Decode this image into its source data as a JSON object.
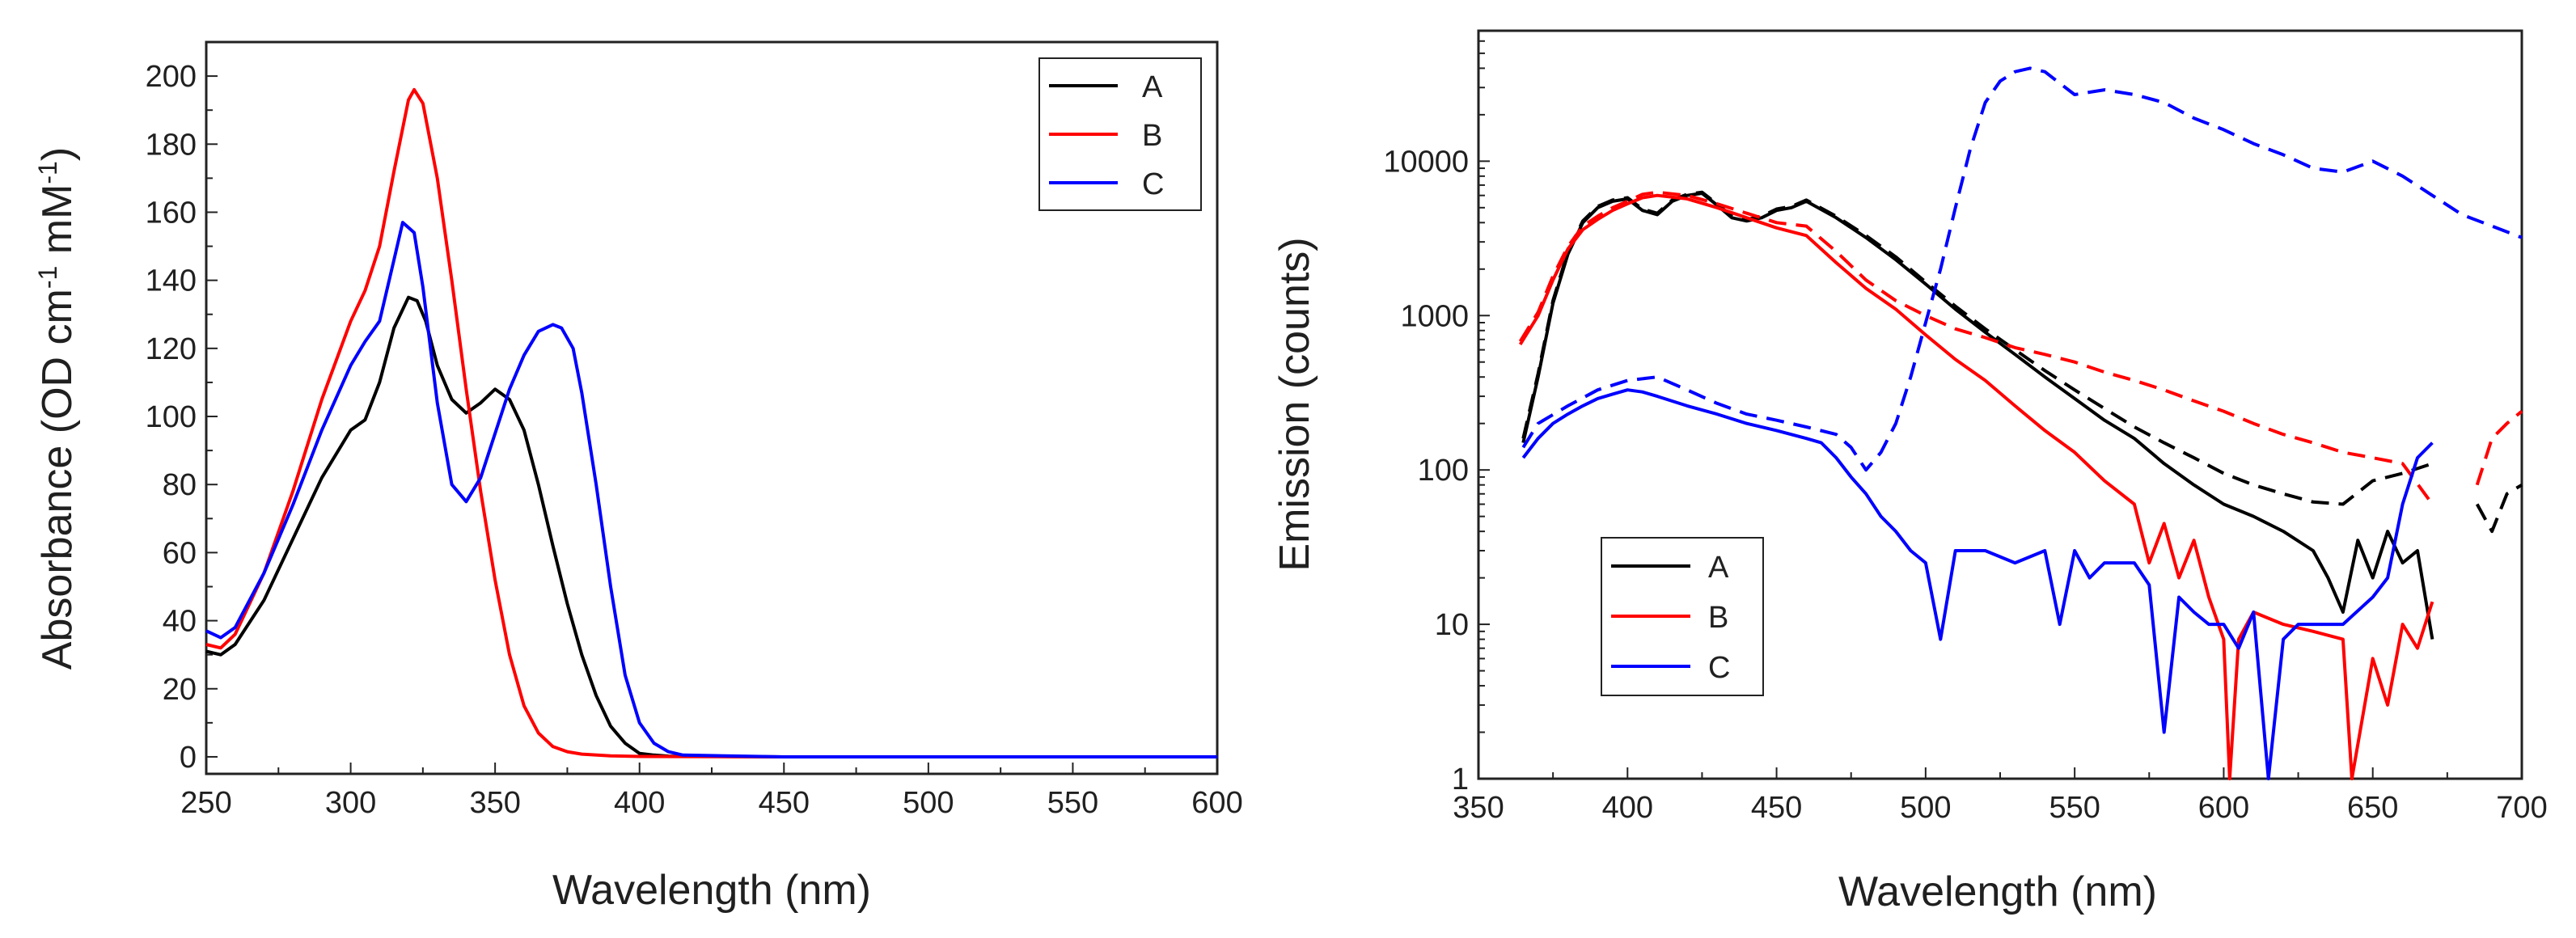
{
  "chart_data": [
    {
      "type": "line",
      "title": "",
      "xlabel": "Wavelength (nm)",
      "ylabel_parts": [
        "Absorbance (OD cm",
        "-1",
        " mM",
        "-1",
        ")"
      ],
      "xlim": [
        250,
        600
      ],
      "ylim": [
        -5,
        210
      ],
      "xticks": [
        250,
        300,
        350,
        400,
        450,
        500,
        550,
        600
      ],
      "yticks": [
        0,
        20,
        40,
        60,
        80,
        100,
        120,
        140,
        160,
        180,
        200
      ],
      "legend_position": "top-right",
      "series": [
        {
          "name": "A",
          "color": "#000000",
          "style": "solid",
          "x": [
            250,
            255,
            260,
            270,
            280,
            290,
            300,
            305,
            310,
            315,
            320,
            323,
            326,
            330,
            335,
            340,
            345,
            350,
            355,
            360,
            365,
            370,
            375,
            380,
            385,
            390,
            395,
            400,
            405,
            410,
            450,
            500,
            550,
            600
          ],
          "y": [
            31,
            30,
            33,
            46,
            64,
            82,
            96,
            99,
            110,
            126,
            135,
            134,
            128,
            115,
            105,
            101,
            104,
            108,
            105,
            96,
            80,
            62,
            45,
            30,
            18,
            9,
            4,
            1,
            0.5,
            0.2,
            0,
            0,
            0,
            0
          ]
        },
        {
          "name": "B",
          "color": "#ff0000",
          "style": "solid",
          "x": [
            250,
            255,
            260,
            270,
            280,
            290,
            300,
            305,
            310,
            315,
            320,
            322,
            325,
            330,
            335,
            340,
            345,
            350,
            355,
            360,
            365,
            370,
            375,
            380,
            390,
            400,
            450,
            500,
            550,
            600
          ],
          "y": [
            33,
            32,
            36,
            54,
            78,
            105,
            128,
            137,
            150,
            172,
            193,
            196,
            192,
            170,
            140,
            108,
            78,
            52,
            30,
            15,
            7,
            3,
            1.5,
            0.8,
            0.3,
            0.1,
            0,
            0,
            0,
            0
          ]
        },
        {
          "name": "C",
          "color": "#0000ff",
          "style": "solid",
          "x": [
            250,
            255,
            260,
            270,
            280,
            290,
            300,
            305,
            310,
            315,
            318,
            322,
            325,
            330,
            335,
            340,
            345,
            350,
            355,
            360,
            365,
            370,
            373,
            377,
            380,
            385,
            390,
            395,
            400,
            405,
            410,
            415,
            450,
            500,
            550,
            600
          ],
          "y": [
            37,
            35,
            38,
            54,
            74,
            96,
            115,
            122,
            128,
            146,
            157,
            154,
            138,
            104,
            80,
            75,
            82,
            95,
            108,
            118,
            125,
            127,
            126,
            120,
            107,
            80,
            50,
            24,
            10,
            4,
            1.5,
            0.5,
            0,
            0,
            0,
            0
          ]
        }
      ]
    },
    {
      "type": "line",
      "title": "",
      "yscale": "log",
      "xlabel": "Wavelength (nm)",
      "ylabel": "Emission (counts)",
      "xlim": [
        350,
        700
      ],
      "ylim": [
        1,
        70000
      ],
      "xticks": [
        350,
        400,
        450,
        500,
        550,
        600,
        650,
        700
      ],
      "yticks": [
        1,
        10,
        100,
        1000,
        10000
      ],
      "ytick_labels": [
        "1",
        "10",
        "100",
        "1000",
        "10000"
      ],
      "legend_position": "bottom-left",
      "legend": [
        {
          "name": "A",
          "color": "#000000"
        },
        {
          "name": "B",
          "color": "#ff0000"
        },
        {
          "name": "C",
          "color": "#0000ff"
        }
      ],
      "series": [
        {
          "name": "A (solid)",
          "color": "#000000",
          "style": "solid",
          "x": [
            365,
            370,
            375,
            380,
            385,
            390,
            395,
            400,
            405,
            410,
            415,
            420,
            425,
            430,
            435,
            440,
            445,
            450,
            455,
            460,
            470,
            480,
            490,
            500,
            510,
            520,
            530,
            540,
            550,
            560,
            570,
            580,
            590,
            600,
            610,
            620,
            630,
            635,
            640,
            645,
            650,
            655,
            660,
            665,
            670
          ],
          "y": [
            150,
            400,
            1200,
            2500,
            4000,
            5000,
            5500,
            5700,
            4800,
            4500,
            5500,
            6000,
            6200,
            5200,
            4300,
            4100,
            4300,
            4800,
            5000,
            5500,
            4300,
            3200,
            2300,
            1600,
            1100,
            780,
            560,
            400,
            290,
            210,
            160,
            110,
            80,
            60,
            50,
            40,
            30,
            20,
            12,
            35,
            20,
            40,
            25,
            30,
            8
          ]
        },
        {
          "name": "A (dashed)",
          "color": "#000000",
          "style": "dashed",
          "x": [
            365,
            370,
            375,
            380,
            385,
            390,
            395,
            400,
            405,
            410,
            415,
            420,
            425,
            430,
            435,
            440,
            445,
            450,
            455,
            460,
            470,
            480,
            490,
            500,
            510,
            520,
            530,
            540,
            550,
            560,
            570,
            580,
            590,
            600,
            610,
            620,
            630,
            640,
            650,
            660,
            670
          ],
          "y": [
            160,
            420,
            1250,
            2600,
            4100,
            5100,
            5600,
            5800,
            4900,
            4600,
            5600,
            6100,
            6300,
            5300,
            4400,
            4200,
            4400,
            4900,
            5100,
            5600,
            4400,
            3300,
            2400,
            1650,
            1150,
            820,
            600,
            440,
            330,
            250,
            190,
            150,
            120,
            95,
            80,
            70,
            62,
            60,
            85,
            95,
            110
          ]
        },
        {
          "name": "A (dashed, red end)",
          "color": "#000000",
          "style": "dashed",
          "x": [
            685,
            690,
            695,
            700
          ],
          "y": [
            60,
            40,
            70,
            80
          ]
        },
        {
          "name": "B (solid)",
          "color": "#ff0000",
          "style": "solid",
          "x": [
            364,
            370,
            375,
            380,
            385,
            390,
            395,
            400,
            405,
            410,
            420,
            430,
            440,
            450,
            460,
            470,
            480,
            490,
            500,
            510,
            520,
            530,
            540,
            550,
            560,
            570,
            575,
            580,
            585,
            590,
            595,
            600,
            602,
            605,
            610,
            620,
            630,
            640,
            643,
            650,
            655,
            660,
            665,
            670
          ],
          "y": [
            650,
            1000,
            1700,
            2700,
            3600,
            4200,
            4800,
            5300,
            5800,
            6000,
            5700,
            5000,
            4300,
            3700,
            3300,
            2200,
            1500,
            1100,
            750,
            520,
            380,
            260,
            180,
            130,
            85,
            60,
            25,
            45,
            20,
            35,
            15,
            8,
            1,
            8,
            12,
            10,
            9,
            8,
            1,
            6,
            3,
            10,
            7,
            14
          ]
        },
        {
          "name": "B (dashed)",
          "color": "#ff0000",
          "style": "dashed",
          "x": [
            364,
            370,
            375,
            380,
            385,
            390,
            395,
            400,
            405,
            410,
            420,
            430,
            440,
            450,
            460,
            470,
            480,
            490,
            500,
            510,
            520,
            530,
            540,
            550,
            560,
            570,
            580,
            590,
            600,
            610,
            620,
            630,
            640,
            650,
            660,
            670
          ],
          "y": [
            680,
            1050,
            1800,
            2800,
            3800,
            4400,
            5000,
            5500,
            6100,
            6300,
            6000,
            5300,
            4600,
            4000,
            3800,
            2600,
            1700,
            1250,
            1000,
            820,
            720,
            620,
            560,
            500,
            430,
            380,
            330,
            280,
            240,
            200,
            170,
            150,
            130,
            120,
            110,
            60
          ]
        },
        {
          "name": "B (dashed, end)",
          "color": "#ff0000",
          "style": "dashed",
          "x": [
            685,
            690,
            695,
            700
          ],
          "y": [
            80,
            160,
            200,
            240
          ]
        },
        {
          "name": "C (solid)",
          "color": "#0000ff",
          "style": "solid",
          "x": [
            365,
            370,
            375,
            380,
            385,
            390,
            395,
            400,
            405,
            410,
            420,
            430,
            440,
            450,
            460,
            465,
            470,
            475,
            480,
            485,
            490,
            495,
            500,
            505,
            510,
            520,
            530,
            540,
            545,
            550,
            555,
            560,
            570,
            575,
            580,
            585,
            590,
            595,
            600,
            605,
            610,
            615,
            620,
            625,
            630,
            640,
            650,
            655,
            660,
            665,
            670
          ],
          "y": [
            120,
            160,
            200,
            230,
            260,
            290,
            310,
            330,
            320,
            300,
            260,
            230,
            200,
            180,
            160,
            150,
            120,
            90,
            70,
            50,
            40,
            30,
            25,
            8,
            30,
            30,
            25,
            30,
            10,
            30,
            20,
            25,
            25,
            18,
            2,
            15,
            12,
            10,
            10,
            7,
            12,
            1,
            8,
            10,
            10,
            10,
            15,
            20,
            60,
            120,
            150
          ]
        },
        {
          "name": "C (dashed)",
          "color": "#0000ff",
          "style": "dashed",
          "x": [
            365,
            370,
            380,
            390,
            400,
            410,
            420,
            430,
            440,
            450,
            460,
            470,
            475,
            480,
            485,
            490,
            495,
            500,
            505,
            510,
            515,
            520,
            525,
            530,
            535,
            540,
            545,
            550,
            560,
            570,
            580,
            590,
            600,
            610,
            620,
            630,
            640,
            650,
            660,
            670,
            680,
            690,
            700
          ],
          "y": [
            140,
            200,
            260,
            330,
            380,
            400,
            330,
            270,
            230,
            210,
            190,
            170,
            140,
            100,
            130,
            200,
            400,
            900,
            2000,
            5000,
            12000,
            24000,
            33000,
            38000,
            40000,
            38000,
            32000,
            27000,
            29000,
            27000,
            24000,
            19000,
            16000,
            13000,
            11000,
            9000,
            8500,
            10000,
            8000,
            6000,
            4500,
            3800,
            3200
          ]
        }
      ]
    }
  ],
  "label_A": "A",
  "label_B": "B",
  "label_C": "C"
}
